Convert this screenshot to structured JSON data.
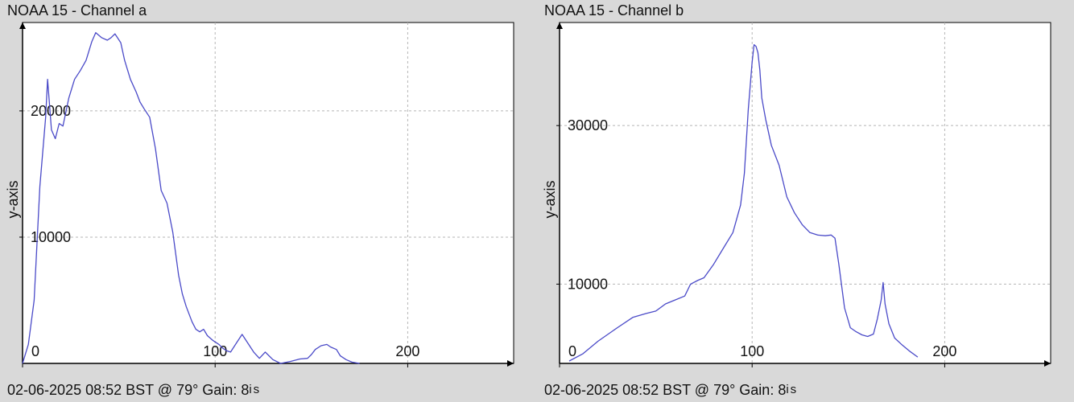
{
  "chart_data": [
    {
      "type": "line",
      "title": "NOAA 15 - Channel a",
      "ylabel": "y-axis",
      "xlabel": "",
      "footer": "02-06-2025 08:52 BST @ 79° Gain: 8",
      "footer_suffix": "is",
      "xlim": [
        0,
        255
      ],
      "ylim": [
        0,
        27000
      ],
      "xticks": [
        0,
        100,
        200
      ],
      "yticks": [
        10000,
        20000
      ],
      "grid": true,
      "series_color": "#4a4ac8",
      "x": [
        -1,
        3,
        6,
        9,
        12,
        13,
        14,
        15,
        17,
        19,
        21,
        24,
        27,
        30,
        33,
        36,
        38,
        41,
        44,
        46,
        48,
        51,
        53,
        56,
        59,
        61,
        63,
        66,
        69,
        72,
        75,
        78,
        81,
        83,
        85,
        88,
        90,
        92,
        94,
        96,
        99,
        102,
        104,
        106,
        108,
        111,
        114,
        117,
        120,
        123,
        126,
        130,
        134,
        139,
        144,
        148,
        150,
        152,
        155,
        158,
        160,
        163,
        165,
        168,
        171,
        175
      ],
      "y": [
        0,
        1500,
        5000,
        14000,
        19500,
        22500,
        20500,
        18500,
        17800,
        19000,
        18800,
        21000,
        22500,
        23200,
        24000,
        25500,
        26200,
        25800,
        25600,
        25800,
        26100,
        25400,
        24000,
        22500,
        21500,
        20700,
        20200,
        19500,
        17000,
        13700,
        12700,
        10400,
        7000,
        5500,
        4500,
        3300,
        2700,
        2500,
        2700,
        2200,
        1800,
        1500,
        1200,
        1000,
        900,
        1600,
        2300,
        1600,
        900,
        400,
        900,
        300,
        0,
        150,
        350,
        400,
        700,
        1100,
        1400,
        1500,
        1300,
        1100,
        600,
        300,
        100,
        0
      ]
    },
    {
      "type": "line",
      "title": "NOAA 15 - Channel b",
      "ylabel": "y-axis",
      "xlabel": "",
      "footer": "02-06-2025 08:52 BST @ 79° Gain: 8",
      "footer_suffix": "is",
      "xlim": [
        0,
        255
      ],
      "ylim": [
        0,
        43000
      ],
      "xticks": [
        0,
        100,
        200
      ],
      "yticks": [
        10000,
        30000
      ],
      "grid": true,
      "series_color": "#4a4ac8",
      "x": [
        5,
        12,
        20,
        30,
        38,
        45,
        50,
        55,
        60,
        65,
        68,
        72,
        75,
        80,
        85,
        90,
        94,
        96,
        98,
        100,
        101,
        102,
        103,
        104,
        105,
        107,
        110,
        114,
        118,
        122,
        126,
        130,
        134,
        138,
        141,
        143,
        145,
        148,
        151,
        154,
        157,
        160,
        163,
        165,
        167,
        168,
        169,
        171,
        174,
        178,
        182,
        186
      ],
      "y": [
        300,
        1200,
        2800,
        4500,
        5800,
        6300,
        6600,
        7500,
        8000,
        8500,
        10000,
        10500,
        10800,
        12500,
        14500,
        16500,
        20000,
        24000,
        32000,
        38000,
        40200,
        40000,
        39200,
        37000,
        33500,
        30800,
        27500,
        25000,
        21000,
        19000,
        17500,
        16500,
        16200,
        16100,
        16200,
        15800,
        12500,
        7000,
        4500,
        4000,
        3600,
        3400,
        3700,
        5600,
        8000,
        10200,
        7500,
        5000,
        3200,
        2300,
        1500,
        800
      ]
    }
  ]
}
